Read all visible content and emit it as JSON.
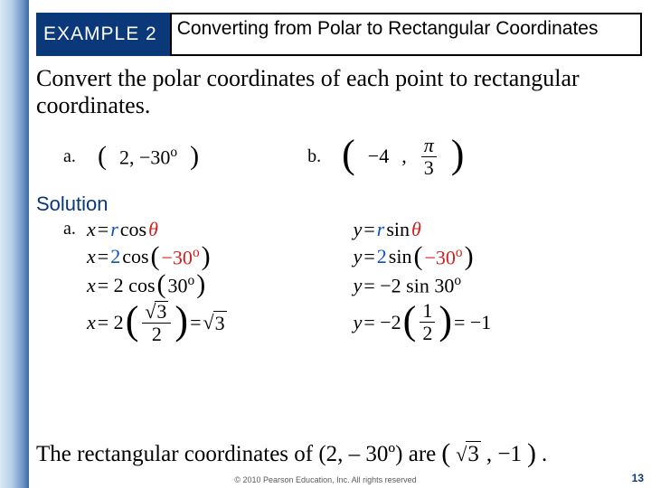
{
  "colors": {
    "example_badge_bg": "#0a3878",
    "red": "#d02020",
    "blue": "#1050c0",
    "solution_color": "#0a3878",
    "pagenum_color": "#0a3878"
  },
  "header": {
    "example_label": "EXAMPLE 2",
    "title": "Converting from Polar to Rectangular Coordinates"
  },
  "instruction": "Convert the polar coordinates of each point to rectangular coordinates.",
  "problems": {
    "a_label": "a.",
    "a_value": "(2, −30º)",
    "b_label": "b.",
    "b_r": "−4",
    "b_theta_num": "π",
    "b_theta_den": "3"
  },
  "solution_label": "Solution",
  "work": {
    "left_label": "a.",
    "x1_lhs": "x =",
    "x1_r": "r",
    "x1_cos": " cos",
    "x1_theta": "θ",
    "x2_lhs": "x = ",
    "x2_r": "2",
    "x2_mid": " cos",
    "x2_arg": "−30º",
    "x3": "x = 2 cos(30º)",
    "x4_lhs": "x = 2",
    "x4_num": "√3",
    "x4_den": "2",
    "x4_eq": " = ",
    "x4_res": "√3",
    "y1_lhs": "y =",
    "y1_r": "r",
    "y1_sin": " sin",
    "y1_theta": "θ",
    "y2_lhs": "y = ",
    "y2_r": "2",
    "y2_mid": " sin",
    "y2_arg": "−30º",
    "y3": "y = −2 sin 30º",
    "y4_lhs": "y = −2",
    "y4_num": "1",
    "y4_den": "2",
    "y4_eq": " = −1"
  },
  "final": {
    "text": "The rectangular coordinates of (2, – 30º) are",
    "res_a": "√3",
    "res_sep": ", −1",
    "res_close": "."
  },
  "footer": "© 2010 Pearson Education, Inc.  All rights reserved",
  "pagenum": "13"
}
